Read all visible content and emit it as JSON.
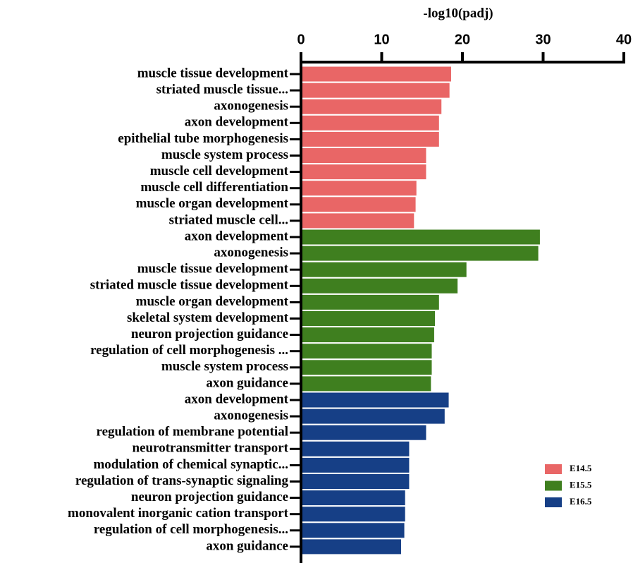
{
  "chart_data": {
    "type": "bar",
    "orientation": "horizontal",
    "x_axis_title": "-log10(padj)",
    "categories": [
      "muscle tissue development",
      "striated muscle tissue...",
      "axonogenesis",
      "axon development",
      "epithelial tube morphogenesis",
      "muscle system process",
      "muscle cell development",
      "muscle cell differentiation",
      "muscle organ development",
      "striated muscle cell...",
      "axon development",
      "axonogenesis",
      "muscle tissue development",
      "striated muscle tissue development",
      "muscle organ development",
      "skeletal system development",
      "neuron projection guidance",
      "regulation of cell morphogenesis ...",
      "muscle system process",
      "axon guidance",
      "axon development",
      "axonogenesis",
      "regulation of membrane potential",
      "neurotransmitter transport",
      "modulation of chemical synaptic...",
      "regulation of trans-synaptic signaling",
      "neuron projection guidance",
      "monovalent inorganic cation transport",
      "regulation of cell morphogenesis...",
      "axon guidance"
    ],
    "series": [
      {
        "name": "E14.5",
        "color": "#e96666",
        "values": [
          18.6,
          18.4,
          17.4,
          17.1,
          17.1,
          15.5,
          15.5,
          14.3,
          14.2,
          14.0,
          null,
          null,
          null,
          null,
          null,
          null,
          null,
          null,
          null,
          null,
          null,
          null,
          null,
          null,
          null,
          null,
          null,
          null,
          null,
          null
        ]
      },
      {
        "name": "E15.5",
        "color": "#3f7f1f",
        "values": [
          null,
          null,
          null,
          null,
          null,
          null,
          null,
          null,
          null,
          null,
          29.6,
          29.4,
          20.5,
          19.4,
          17.1,
          16.6,
          16.5,
          16.2,
          16.2,
          16.1,
          null,
          null,
          null,
          null,
          null,
          null,
          null,
          null,
          null,
          null
        ]
      },
      {
        "name": "E16.5",
        "color": "#163f86",
        "values": [
          null,
          null,
          null,
          null,
          null,
          null,
          null,
          null,
          null,
          null,
          null,
          null,
          null,
          null,
          null,
          null,
          null,
          null,
          null,
          null,
          18.3,
          17.8,
          15.5,
          13.4,
          13.4,
          13.4,
          12.9,
          12.9,
          12.8,
          12.4
        ]
      }
    ],
    "xlim": [
      0,
      40
    ],
    "xticks": [
      0,
      10,
      20,
      30,
      40
    ],
    "legend_position": "lower right"
  }
}
